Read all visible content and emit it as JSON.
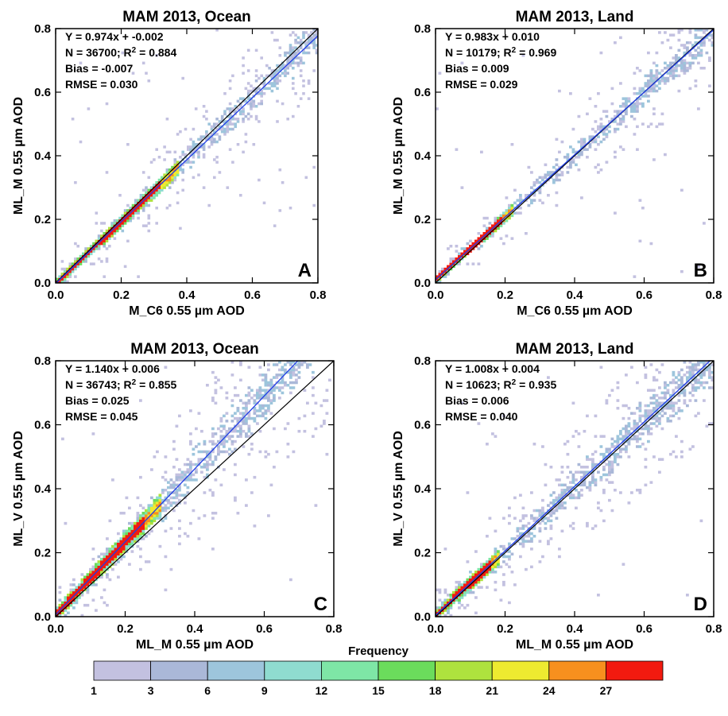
{
  "colorbar": {
    "title": "Frequency",
    "ticks": [
      "1",
      "3",
      "6",
      "9",
      "12",
      "15",
      "18",
      "21",
      "24",
      "27"
    ],
    "colors": [
      "#c3c1e0",
      "#aab8d8",
      "#9dc5dc",
      "#8fdcd0",
      "#7ee6a6",
      "#6bdc5c",
      "#aee23e",
      "#eeea30",
      "#f7901e",
      "#f21a0f"
    ]
  },
  "line_colors": {
    "one_to_one": "#000000",
    "fit": "#1f3ce6"
  },
  "chart_data": [
    {
      "type": "heatmap",
      "panel": "A",
      "title": "MAM 2013, Ocean",
      "xlabel": "M_C6 0.55 µm AOD",
      "ylabel": "ML_M 0.55 µm AOD",
      "xlim": [
        0,
        0.8
      ],
      "ylim": [
        0,
        0.8
      ],
      "ticks": [
        "0.0",
        "0.2",
        "0.4",
        "0.6",
        "0.8"
      ],
      "fit": {
        "slope": 0.974,
        "intercept": -0.002
      },
      "stats": [
        "Y = 0.974x + -0.002",
        "N = 36700; R",
        "Bias = -0.007",
        "RMSE = 0.030"
      ],
      "r2_suffix": " = 0.884",
      "spread": 0.045,
      "core_max": 0.37
    },
    {
      "type": "heatmap",
      "panel": "B",
      "title": "MAM 2013, Land",
      "xlabel": "M_C6 0.55 µm AOD",
      "ylabel": "ML_M 0.55 µm AOD",
      "xlim": [
        0,
        0.8
      ],
      "ylim": [
        0,
        0.8
      ],
      "ticks": [
        "0.0",
        "0.2",
        "0.4",
        "0.6",
        "0.8"
      ],
      "fit": {
        "slope": 0.983,
        "intercept": 0.01
      },
      "stats": [
        "Y = 0.983x + 0.010",
        "N = 10179; R",
        "Bias = 0.009",
        "RMSE = 0.029"
      ],
      "r2_suffix": " = 0.969",
      "spread": 0.04,
      "core_max": 0.22
    },
    {
      "type": "heatmap",
      "panel": "C",
      "title": "MAM 2013, Ocean",
      "xlabel": "ML_M 0.55 µm AOD",
      "ylabel": "ML_V 0.55 µm AOD",
      "xlim": [
        0,
        0.8
      ],
      "ylim": [
        0,
        0.8
      ],
      "ticks": [
        "0.0",
        "0.2",
        "0.4",
        "0.6",
        "0.8"
      ],
      "fit": {
        "slope": 1.14,
        "intercept": 0.006
      },
      "stats": [
        "Y = 1.140x + 0.006",
        "N = 36743; R",
        "Bias = 0.025",
        "RMSE = 0.045"
      ],
      "r2_suffix": " = 0.855",
      "spread": 0.07,
      "core_max": 0.3
    },
    {
      "type": "heatmap",
      "panel": "D",
      "title": "MAM 2013, Land",
      "xlabel": "ML_M 0.55 µm AOD",
      "ylabel": "ML_V 0.55 µm AOD",
      "xlim": [
        0,
        0.8
      ],
      "ylim": [
        0,
        0.8
      ],
      "ticks": [
        "0.0",
        "0.2",
        "0.4",
        "0.6",
        "0.8"
      ],
      "fit": {
        "slope": 1.008,
        "intercept": 0.004
      },
      "stats": [
        "Y = 1.008x + 0.004",
        "N = 10623; R",
        "Bias = 0.006",
        "RMSE = 0.040"
      ],
      "r2_suffix": " = 0.935",
      "spread": 0.06,
      "core_max": 0.18
    }
  ]
}
